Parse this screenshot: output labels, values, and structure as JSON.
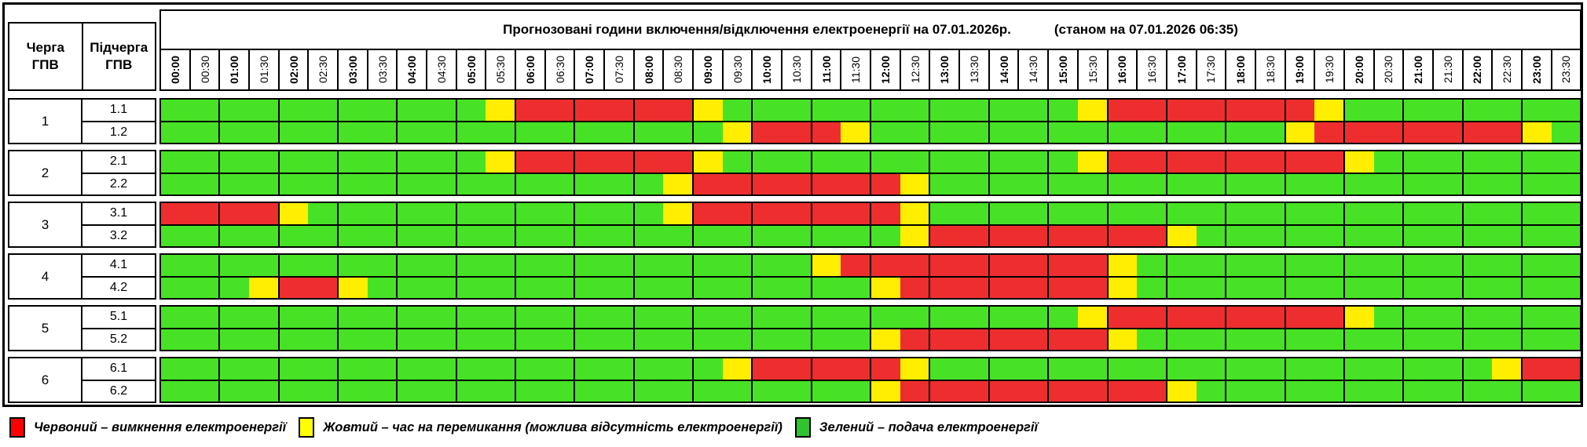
{
  "header": {
    "queue_col_label": "Черга\nГПВ",
    "subqueue_col_label": "Підчерга\nГПВ",
    "title_main": "Прогнозовані години включення/відключення електроенергії на 07.01.2026р.",
    "title_note": "(станом на 07.01.2026 06:35)"
  },
  "chart_data": {
    "type": "heatmap",
    "title": "Прогнозовані години включення/відключення електроенергії на 07.01.2026р.",
    "subtitle": "(станом на 07.01.2026 06:35)",
    "x_categories": [
      "00:00",
      "00:30",
      "01:00",
      "01:30",
      "02:00",
      "02:30",
      "03:00",
      "03:30",
      "04:00",
      "04:30",
      "05:00",
      "05:30",
      "06:00",
      "06:30",
      "07:00",
      "07:30",
      "08:00",
      "08:30",
      "09:00",
      "09:30",
      "10:00",
      "10:30",
      "11:00",
      "11:30",
      "12:00",
      "12:30",
      "13:00",
      "13:30",
      "14:00",
      "14:30",
      "15:00",
      "15:30",
      "16:00",
      "16:30",
      "17:00",
      "17:30",
      "18:00",
      "18:30",
      "19:00",
      "19:30",
      "20:00",
      "20:30",
      "21:00",
      "21:30",
      "22:00",
      "22:30",
      "23:00",
      "23:30"
    ],
    "cell_states": {
      "G": {
        "color": "#47e226",
        "meaning": "подача електроенергії"
      },
      "Y": {
        "color": "#ffee00",
        "meaning": "час на перемикання (можлива відсутність електроенергії)"
      },
      "R": {
        "color": "#ee2e2e",
        "meaning": "вимкнення електроенергії"
      }
    },
    "row_groups": [
      {
        "queue": "1",
        "rows": [
          {
            "label": "1.1",
            "pattern": "GGGGGGGGGGGYRRRRRRYGGGGGGGGGGGGYRRRRRRRYGGGGGGGG"
          },
          {
            "label": "1.2",
            "pattern": "GGGGGGGGGGGGGGGGGGGYRRRYGGGGGGGGGGGGGGYRRRRRRRYG"
          }
        ]
      },
      {
        "queue": "2",
        "rows": [
          {
            "label": "2.1",
            "pattern": "GGGGGGGGGGGYRRRRRRYGGGGGGGGGGGGYRRRRRRRRYGGGGGGG"
          },
          {
            "label": "2.2",
            "pattern": "GGGGGGGGGGGGGGGGGYRRRRRRRYGGGGGGGGGGGGGGGGGGGGGG"
          }
        ]
      },
      {
        "queue": "3",
        "rows": [
          {
            "label": "3.1",
            "pattern": "RRRRYGGGGGGGGGGGGYRRRRRRRYGGGGGGGGGGGGGGGGGGGGGG"
          },
          {
            "label": "3.2",
            "pattern": "GGGGGGGGGGGGGGGGGGGGGGGGGYRRRRRRRRYGGGGGGGGGGGGG"
          }
        ]
      },
      {
        "queue": "4",
        "rows": [
          {
            "label": "4.1",
            "pattern": "GGGGGGGGGGGGGGGGGGGGGGYRRRRRRRRRYGGGGGGGGGGGGGGG"
          },
          {
            "label": "4.2",
            "pattern": "GGGYRRYGGGGGGGGGGGGGGGGGYRRRRRRRYGGGGGGGGGGGGGGG"
          }
        ]
      },
      {
        "queue": "5",
        "rows": [
          {
            "label": "5.1",
            "pattern": "GGGGGGGGGGGGGGGGGGGGGGGGGGGGGGGYRRRRRRRRYGGGGGGG"
          },
          {
            "label": "5.2",
            "pattern": "GGGGGGGGGGGGGGGGGGGGGGGGYRRRRRRRYGGGGGGGGGGGGGGG"
          }
        ]
      },
      {
        "queue": "6",
        "rows": [
          {
            "label": "6.1",
            "pattern": "GGGGGGGGGGGGGGGGGGGYRRRRRYGGGGGGGGGGGGGGGGGGGYRR"
          },
          {
            "label": "6.2",
            "pattern": "GGGGGGGGGGGGGGGGGGGGGGGGYRRRRRRRRRYGGGGGGGGGGGGG"
          }
        ]
      }
    ],
    "legend_position": "bottom",
    "grid": "hourly vertical lines"
  },
  "legend": {
    "items": [
      {
        "color": "#ff0000",
        "label": "Червоний – вимкнення електроенергії"
      },
      {
        "color": "#ffff00",
        "label": "Жовтий – час на перемикання (можлива відсутність електроенергії)"
      },
      {
        "color": "#2fc42f",
        "label": "Зелений – подача електроенергії"
      }
    ]
  },
  "layout_colors": {
    "cell_green": "#47e226",
    "cell_yellow": "#ffee00",
    "cell_red": "#ee2e2e",
    "border": "#000000"
  }
}
